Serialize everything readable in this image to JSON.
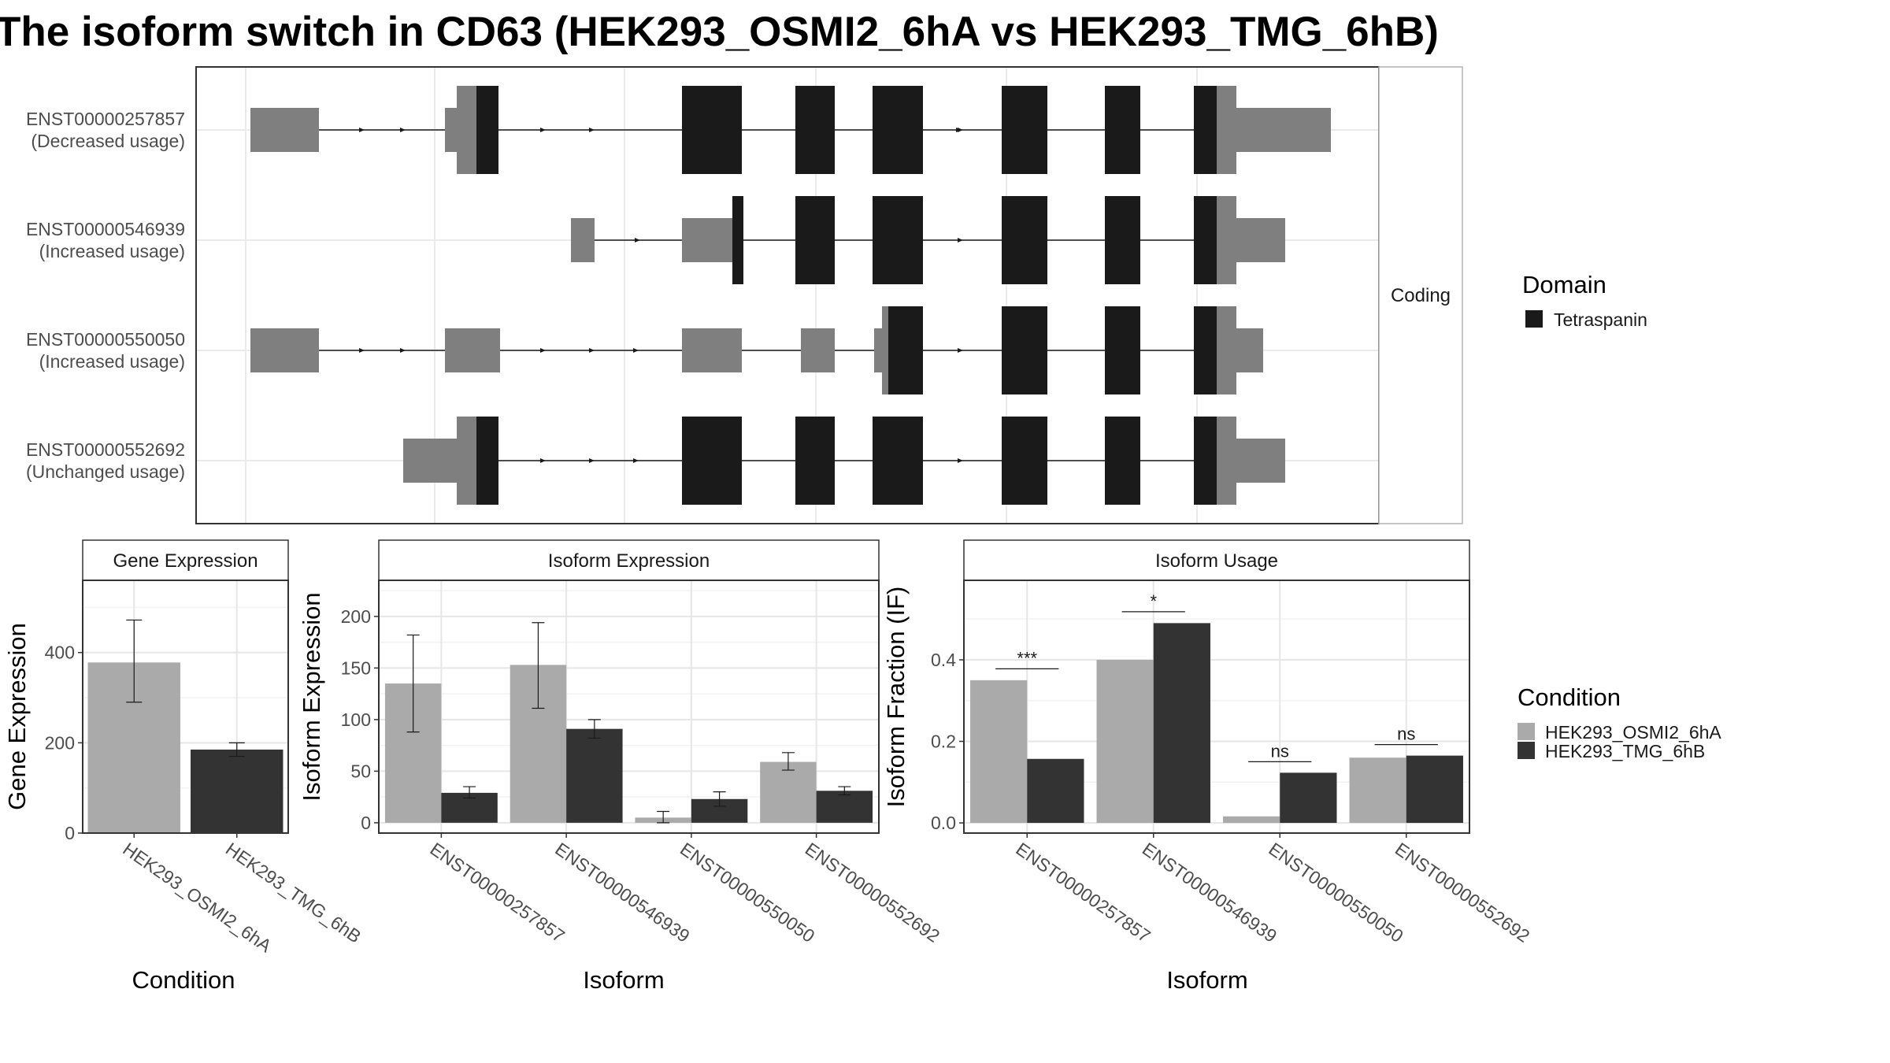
{
  "title": "The isoform switch in CD63 (HEK293_OSMI2_6hA vs HEK293_TMG_6hB)",
  "structure": {
    "facet_label": "Coding",
    "isoforms": [
      {
        "id": "ENST00000257857",
        "usage": "(Decreased usage)"
      },
      {
        "id": "ENST00000546939",
        "usage": "(Increased usage)"
      },
      {
        "id": "ENST00000550050",
        "usage": "(Increased usage)"
      },
      {
        "id": "ENST00000552692",
        "usage": "(Unchanged usage)"
      }
    ]
  },
  "legends": {
    "domain": {
      "title": "Domain",
      "items": [
        {
          "label": "Tetraspanin",
          "color": "#1a1a1a"
        }
      ]
    },
    "condition": {
      "title": "Condition",
      "items": [
        {
          "label": "HEK293_OSMI2_6hA",
          "color": "#aaaaaa"
        },
        {
          "label": "HEK293_TMG_6hB",
          "color": "#333333"
        }
      ]
    }
  },
  "chart_data": [
    {
      "type": "bar",
      "title": "Gene Expression",
      "xlabel": "Condition",
      "ylabel": "Gene Expression",
      "categories": [
        "HEK293_OSMI2_6hA",
        "HEK293_TMG_6hB"
      ],
      "values": [
        378,
        185
      ],
      "errors": [
        [
          290,
          472
        ],
        [
          170,
          200
        ]
      ],
      "colors": [
        "#aaaaaa",
        "#333333"
      ],
      "ylim": [
        0,
        560
      ],
      "yticks": [
        0,
        200,
        400
      ],
      "grid": true
    },
    {
      "type": "bar",
      "title": "Isoform Expression",
      "xlabel": "Isoform",
      "ylabel": "Isoform Expression",
      "categories": [
        "ENST00000257857",
        "ENST00000546939",
        "ENST00000550050",
        "ENST00000552692"
      ],
      "series": [
        {
          "name": "HEK293_OSMI2_6hA",
          "color": "#aaaaaa",
          "values": [
            135,
            153,
            5,
            59
          ],
          "errors": [
            [
              88,
              182
            ],
            [
              111,
              194
            ],
            [
              0,
              11
            ],
            [
              51,
              68
            ]
          ]
        },
        {
          "name": "HEK293_TMG_6hB",
          "color": "#333333",
          "values": [
            29,
            91,
            23,
            31
          ],
          "errors": [
            [
              24,
              35
            ],
            [
              82,
              100
            ],
            [
              16,
              30
            ],
            [
              27,
              35
            ]
          ]
        }
      ],
      "ylim": [
        -10,
        235
      ],
      "yticks": [
        0,
        50,
        100,
        150,
        200
      ],
      "grid": true
    },
    {
      "type": "bar",
      "title": "Isoform Usage",
      "xlabel": "Isoform",
      "ylabel": "Isoform Fraction (IF)",
      "categories": [
        "ENST00000257857",
        "ENST00000546939",
        "ENST00000550050",
        "ENST00000552692"
      ],
      "series": [
        {
          "name": "HEK293_OSMI2_6hA",
          "color": "#aaaaaa",
          "values": [
            0.35,
            0.4,
            0.016,
            0.16
          ]
        },
        {
          "name": "HEK293_TMG_6hB",
          "color": "#333333",
          "values": [
            0.157,
            0.49,
            0.123,
            0.165
          ]
        }
      ],
      "significance": [
        "***",
        "*",
        "ns",
        "ns"
      ],
      "sig_levels": [
        0.378,
        0.518,
        0.15,
        0.192
      ],
      "ylim": [
        -0.025,
        0.595
      ],
      "yticks": [
        "0.0",
        "0.2",
        "0.4"
      ],
      "ytick_values": [
        0.0,
        0.2,
        0.4
      ],
      "grid": true
    }
  ]
}
